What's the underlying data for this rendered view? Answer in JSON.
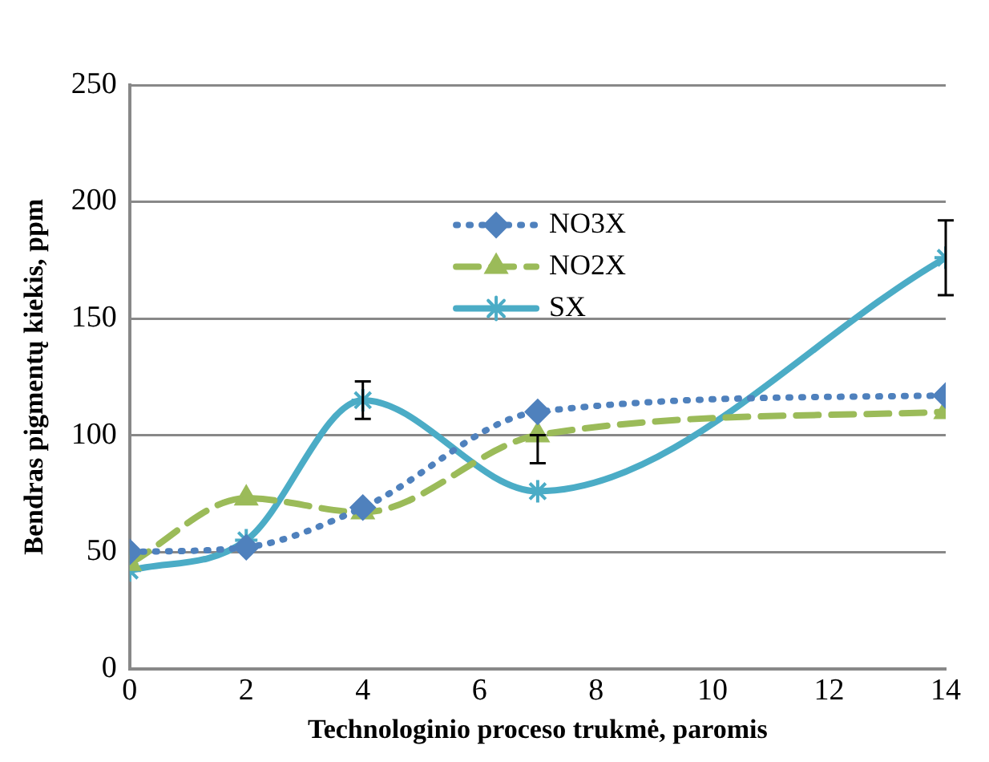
{
  "chart_data": {
    "type": "line",
    "xlabel": "Technologinio proceso trukmė, paromis",
    "ylabel": "Bendras pigmentų kiekis, ppm",
    "x": [
      0,
      2,
      4,
      7,
      14
    ],
    "series": [
      {
        "name": "NO3X",
        "color": "#4f81bd",
        "values": [
          50,
          52,
          69,
          110,
          117
        ],
        "marker": "diamond",
        "line_style": "dotted"
      },
      {
        "name": "NO2X",
        "color": "#9bbb59",
        "values": [
          45,
          73,
          67,
          100,
          110
        ],
        "marker": "triangle",
        "line_style": "dashed",
        "errors": [
          null,
          null,
          null,
          [
            88,
            100
          ],
          null
        ]
      },
      {
        "name": "SX",
        "color": "#4bacc6",
        "values": [
          42,
          55,
          115,
          76,
          176
        ],
        "marker": "cross",
        "line_style": "solid",
        "errors": [
          null,
          null,
          8,
          null,
          16
        ]
      }
    ],
    "xlim": [
      0,
      14
    ],
    "xticks": [
      0,
      2,
      4,
      6,
      8,
      10,
      12,
      14
    ],
    "ylim": [
      0,
      250
    ],
    "yticks": [
      0,
      50,
      100,
      150,
      200,
      250
    ],
    "grid": "y",
    "legend": "top"
  }
}
